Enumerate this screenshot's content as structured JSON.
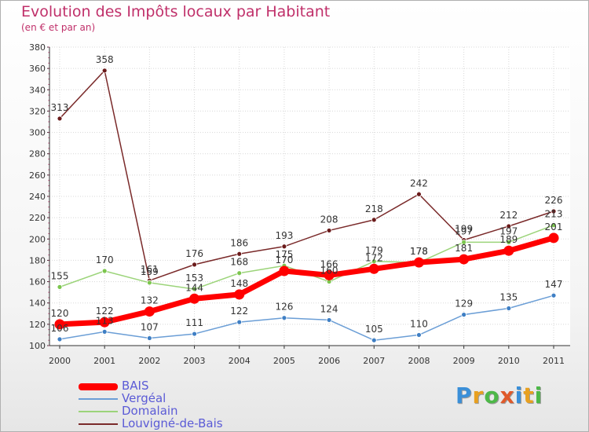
{
  "header": {
    "title": "Evolution des Impôts locaux par Habitant",
    "subtitle": "(en € et par an)"
  },
  "logo": {
    "text": "Proxiti",
    "colors": [
      "#3a8fd8",
      "#e8a020",
      "#4db848",
      "#e05a2a",
      "#3a8fd8",
      "#e8a020",
      "#4db848"
    ]
  },
  "chart_data": {
    "type": "line",
    "categories": [
      "2000",
      "2001",
      "2002",
      "2003",
      "2004",
      "2005",
      "2006",
      "2007",
      "2008",
      "2009",
      "2010",
      "2011"
    ],
    "ylim": [
      100,
      380
    ],
    "yticks": [
      100,
      120,
      140,
      160,
      180,
      200,
      220,
      240,
      260,
      280,
      300,
      320,
      340,
      360,
      380
    ],
    "grid": true,
    "legend_position": "bottom-left",
    "series": [
      {
        "name": "Louvigné-de-Bais",
        "color": "#7a2a2a",
        "marker": "#6b1b1b",
        "width": 1.5,
        "values": [
          313,
          358,
          161,
          176,
          186,
          193,
          208,
          218,
          242,
          199,
          212,
          226
        ]
      },
      {
        "name": "Domalain",
        "color": "#9cd47a",
        "marker": "#7cc64e",
        "width": 1.5,
        "values": [
          155,
          170,
          159,
          153,
          168,
          175,
          160,
          179,
          178,
          197,
          197,
          213
        ]
      },
      {
        "name": "Vergéal",
        "color": "#6b9ed6",
        "marker": "#3f7fc4",
        "width": 1.5,
        "values": [
          106,
          113,
          107,
          111,
          122,
          126,
          124,
          105,
          110,
          129,
          135,
          147
        ]
      },
      {
        "name": "BAIS",
        "color": "#ff0000",
        "marker": "#ff0000",
        "width": 7,
        "values": [
          120,
          122,
          132,
          144,
          148,
          170,
          166,
          172,
          178,
          181,
          189,
          201
        ]
      }
    ],
    "point_labels": [
      {
        "series": "Louvigné-de-Bais",
        "labels": [
          "313",
          "358",
          "161",
          "176",
          "186",
          "193",
          "208",
          "218",
          "242",
          "199",
          "212",
          "226"
        ]
      },
      {
        "series": "Domalain",
        "labels": [
          "155",
          "170",
          "159",
          "153",
          "168",
          "175",
          "160",
          "179",
          "178",
          "197",
          "197",
          "213"
        ]
      },
      {
        "series": "Vergéal",
        "labels": [
          "106",
          "113",
          "107",
          "111",
          "122",
          "126",
          "124",
          "105",
          "110",
          "129",
          "135",
          "147"
        ]
      },
      {
        "series": "BAIS",
        "labels": [
          "120",
          "122",
          "132",
          "144",
          "148",
          "170",
          "166",
          "172",
          "178",
          "181",
          "189",
          "201"
        ]
      }
    ],
    "legend": [
      {
        "label": "BAIS",
        "color": "#ff0000",
        "width": 9
      },
      {
        "label": "Vergéal",
        "color": "#6b9ed6",
        "width": 2
      },
      {
        "label": "Domalain",
        "color": "#9cd47a",
        "width": 2
      },
      {
        "label": "Louvigné-de-Bais",
        "color": "#7a2a2a",
        "width": 2
      }
    ]
  }
}
